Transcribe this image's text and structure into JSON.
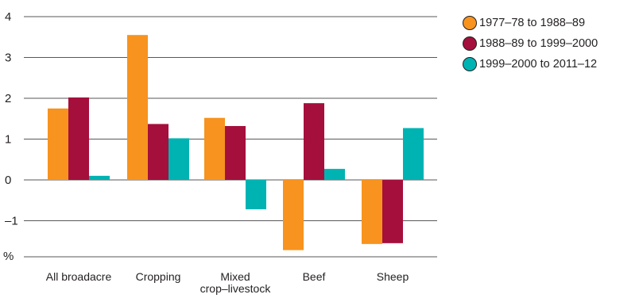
{
  "chart_data": {
    "type": "bar",
    "categories": [
      "All broadacre",
      "Cropping",
      "Mixed crop–livestock",
      "Beef",
      "Sheep"
    ],
    "category_lines": [
      [
        "All broadacre"
      ],
      [
        "Cropping"
      ],
      [
        "Mixed",
        "crop–livestock"
      ],
      [
        "Beef"
      ],
      [
        "Sheep"
      ]
    ],
    "series": [
      {
        "name": "1977–78 to 1988–89",
        "color": "#f7931e",
        "values": [
          1.75,
          3.55,
          1.52,
          -1.72,
          -1.57
        ]
      },
      {
        "name": "1988–89 to 1999–2000",
        "color": "#a50f3c",
        "values": [
          2.02,
          1.37,
          1.32,
          1.88,
          -1.55
        ]
      },
      {
        "name": "1999–2000 to 2011–12",
        "color": "#00b3b3",
        "values": [
          0.1,
          1.02,
          -0.72,
          0.27,
          1.27
        ]
      }
    ],
    "yticks": [
      4,
      3,
      2,
      1,
      0,
      -1
    ],
    "ytick_labels": [
      "4",
      "3",
      "2",
      "1",
      "0",
      "–1"
    ],
    "ylim": [
      -1.9,
      4
    ],
    "y_unit_label": "%",
    "grid": true,
    "legend": "top-right"
  }
}
